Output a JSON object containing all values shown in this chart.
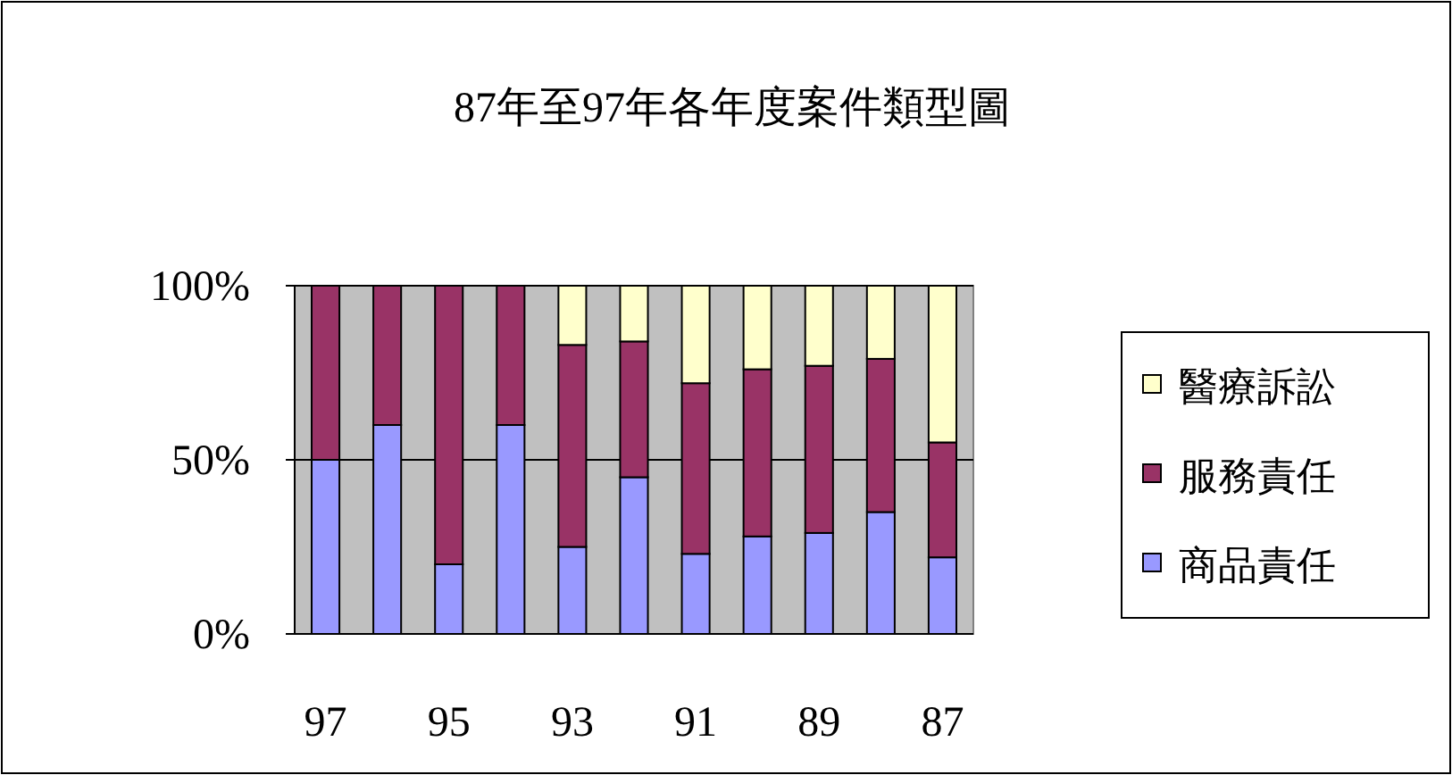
{
  "chart_data": {
    "type": "bar",
    "stacked": true,
    "title": "87年至97年各年度案件類型圖",
    "categories": [
      "97",
      null,
      "95",
      null,
      "93",
      null,
      "91",
      null,
      "89",
      null,
      "87"
    ],
    "series": [
      {
        "name": "商品責任",
        "color": "#9999ff",
        "values": [
          50,
          60,
          20,
          60,
          25,
          45,
          23,
          28,
          29,
          35,
          22
        ]
      },
      {
        "name": "服務責任",
        "color": "#993366",
        "values": [
          50,
          40,
          80,
          40,
          58,
          39,
          49,
          48,
          48,
          44,
          33
        ]
      },
      {
        "name": "醫療訴訟",
        "color": "#ffffcc",
        "values": [
          0,
          0,
          0,
          0,
          17,
          16,
          28,
          24,
          23,
          21,
          45
        ]
      }
    ],
    "ylim": [
      0,
      100
    ],
    "yticks": [
      {
        "value": 0,
        "label": "0%"
      },
      {
        "value": 50,
        "label": "50%"
      },
      {
        "value": 100,
        "label": "100%"
      }
    ],
    "grid": "y",
    "legend": "right"
  }
}
